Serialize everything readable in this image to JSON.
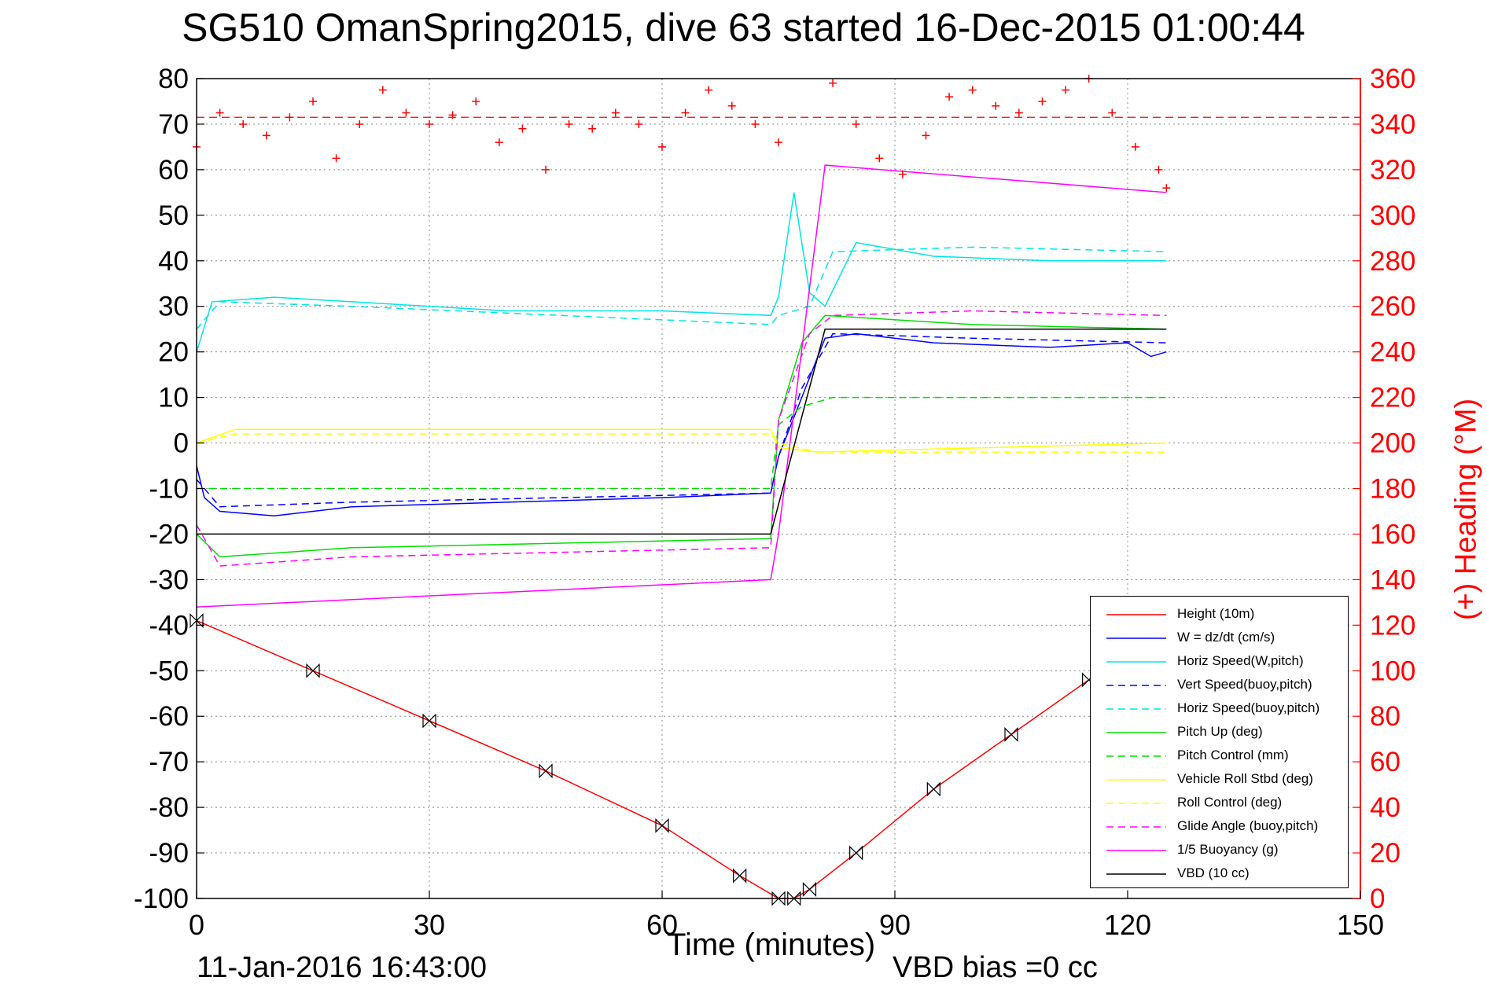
{
  "title": "SG510 OmanSpring2015, dive 63 started 16-Dec-2015 01:00:44",
  "footer_left": "11-Jan-2016 16:43:00",
  "footer_right": "VBD bias =0 cc",
  "chart_data": {
    "type": "line",
    "title": "SG510 OmanSpring2015, dive 63 started 16-Dec-2015 01:00:44",
    "xlabel": "Time (minutes)",
    "ylabel_left": "",
    "ylabel_right": "(+) Heading (°M)",
    "xlim": [
      0,
      150
    ],
    "ylim_left": [
      -100,
      80
    ],
    "ylim_right": [
      0,
      360
    ],
    "xticks": [
      0,
      30,
      60,
      90,
      120,
      150
    ],
    "yticks_left": [
      80,
      70,
      60,
      50,
      40,
      30,
      20,
      10,
      0,
      -10,
      -20,
      -30,
      -40,
      -50,
      -60,
      -70,
      -80,
      -90,
      -100
    ],
    "yticks_right": [
      360,
      340,
      320,
      300,
      280,
      260,
      240,
      220,
      200,
      180,
      160,
      140,
      120,
      100,
      80,
      60,
      40,
      20,
      0
    ],
    "grid": true,
    "legend_position": "bottom-right",
    "heading_target": 343,
    "colors": {
      "height": "#ff0000",
      "w": "#0000ff",
      "horiz": "#00e5e5",
      "pitch": "#00dd00",
      "roll": "#ffff00",
      "glide": "#ff00ff",
      "buoy": "#ff00ff",
      "vbd": "#000000",
      "heading": "#ff0000"
    },
    "legend": [
      "Height (10m)",
      "W = dz/dt (cm/s)",
      "Horiz Speed(W,pitch)",
      "Vert Speed(buoy,pitch)",
      "Horiz Speed(buoy,pitch)",
      "Pitch Up (deg)",
      "Pitch Control (mm)",
      "Vehicle Roll Stbd (deg)",
      "Roll Control (deg)",
      "Glide Angle (buoy,pitch)",
      "1/5 Buoyancy (g)",
      "VBD (10 cc)"
    ],
    "series": [
      {
        "name": "Height (10m)",
        "x": [
          0,
          15,
          30,
          45,
          60,
          70,
          75,
          77,
          79,
          85,
          95,
          105,
          115
        ],
        "y": [
          -39,
          -50,
          -61,
          -72,
          -84,
          -95,
          -100,
          -100,
          -98,
          -90,
          -76,
          -64,
          -52
        ]
      },
      {
        "name": "W = dz/dt (cm/s)",
        "x": [
          0,
          1,
          3,
          10,
          20,
          40,
          60,
          74,
          75,
          78,
          81,
          85,
          95,
          110,
          120,
          123,
          125
        ],
        "y": [
          -5,
          -12,
          -15,
          -16,
          -14,
          -13,
          -12,
          -11,
          -3,
          10,
          23,
          24,
          22,
          21,
          22,
          19,
          20
        ]
      },
      {
        "name": "Horiz Speed(W,pitch)",
        "x": [
          0,
          2,
          10,
          20,
          40,
          60,
          74,
          75,
          77,
          79,
          81,
          85,
          95,
          110,
          125
        ],
        "y": [
          20,
          31,
          32,
          31,
          29,
          29,
          28,
          32,
          55,
          33,
          30,
          44,
          41,
          40,
          40
        ]
      },
      {
        "name": "Vert Speed(buoy,pitch)",
        "x": [
          0,
          3,
          20,
          74,
          75,
          78,
          82,
          100,
          125
        ],
        "y": [
          -8,
          -14,
          -13,
          -11,
          -3,
          12,
          24,
          23,
          22
        ]
      },
      {
        "name": "Horiz Speed(buoy,pitch)",
        "x": [
          0,
          3,
          20,
          74,
          75,
          79,
          82,
          100,
          125
        ],
        "y": [
          25,
          31,
          30,
          26,
          28,
          30,
          42,
          43,
          42
        ]
      },
      {
        "name": "Pitch Up (deg)",
        "x": [
          0,
          3,
          20,
          74,
          75,
          78,
          81,
          100,
          125
        ],
        "y": [
          -20,
          -25,
          -23,
          -21,
          5,
          22,
          28,
          26,
          25
        ]
      },
      {
        "name": "Pitch Control (mm)",
        "x": [
          0,
          2,
          74,
          75,
          78,
          82,
          125
        ],
        "y": [
          -10,
          -10,
          -10,
          4,
          8,
          10,
          10
        ]
      },
      {
        "name": "Vehicle Roll Stbd (deg)",
        "x": [
          0,
          5,
          74,
          75,
          80,
          125
        ],
        "y": [
          0,
          3,
          3,
          -1,
          -2,
          0
        ]
      },
      {
        "name": "Roll Control (deg)",
        "x": [
          0,
          5,
          74,
          75,
          80,
          125
        ],
        "y": [
          0,
          2,
          2,
          0,
          -2,
          -2
        ]
      },
      {
        "name": "Glide Angle (buoy,pitch)",
        "x": [
          0,
          3,
          20,
          74,
          75,
          79,
          82,
          100,
          125
        ],
        "y": [
          -18,
          -27,
          -25,
          -23,
          5,
          24,
          28,
          29,
          28
        ]
      },
      {
        "name": "1/5 Buoyancy (g)",
        "x": [
          0,
          74,
          75,
          81,
          125
        ],
        "y": [
          -36,
          -30,
          -20,
          61,
          55
        ]
      },
      {
        "name": "VBD (10 cc)",
        "x": [
          0,
          74,
          81,
          125
        ],
        "y": [
          -20,
          -20,
          25,
          25
        ]
      }
    ],
    "heading": {
      "x": [
        0,
        3,
        6,
        9,
        12,
        15,
        18,
        21,
        24,
        27,
        30,
        33,
        36,
        39,
        42,
        45,
        48,
        51,
        54,
        57,
        60,
        63,
        66,
        69,
        72,
        75,
        82,
        85,
        88,
        91,
        94,
        97,
        100,
        103,
        106,
        109,
        112,
        115,
        118,
        121,
        124,
        125
      ],
      "y": [
        330,
        345,
        340,
        335,
        343,
        350,
        325,
        340,
        355,
        345,
        340,
        344,
        350,
        332,
        338,
        320,
        340,
        338,
        345,
        340,
        330,
        345,
        355,
        348,
        340,
        332,
        358,
        340,
        325,
        318,
        335,
        352,
        355,
        348,
        345,
        350,
        355,
        360,
        345,
        330,
        320,
        312
      ]
    }
  }
}
